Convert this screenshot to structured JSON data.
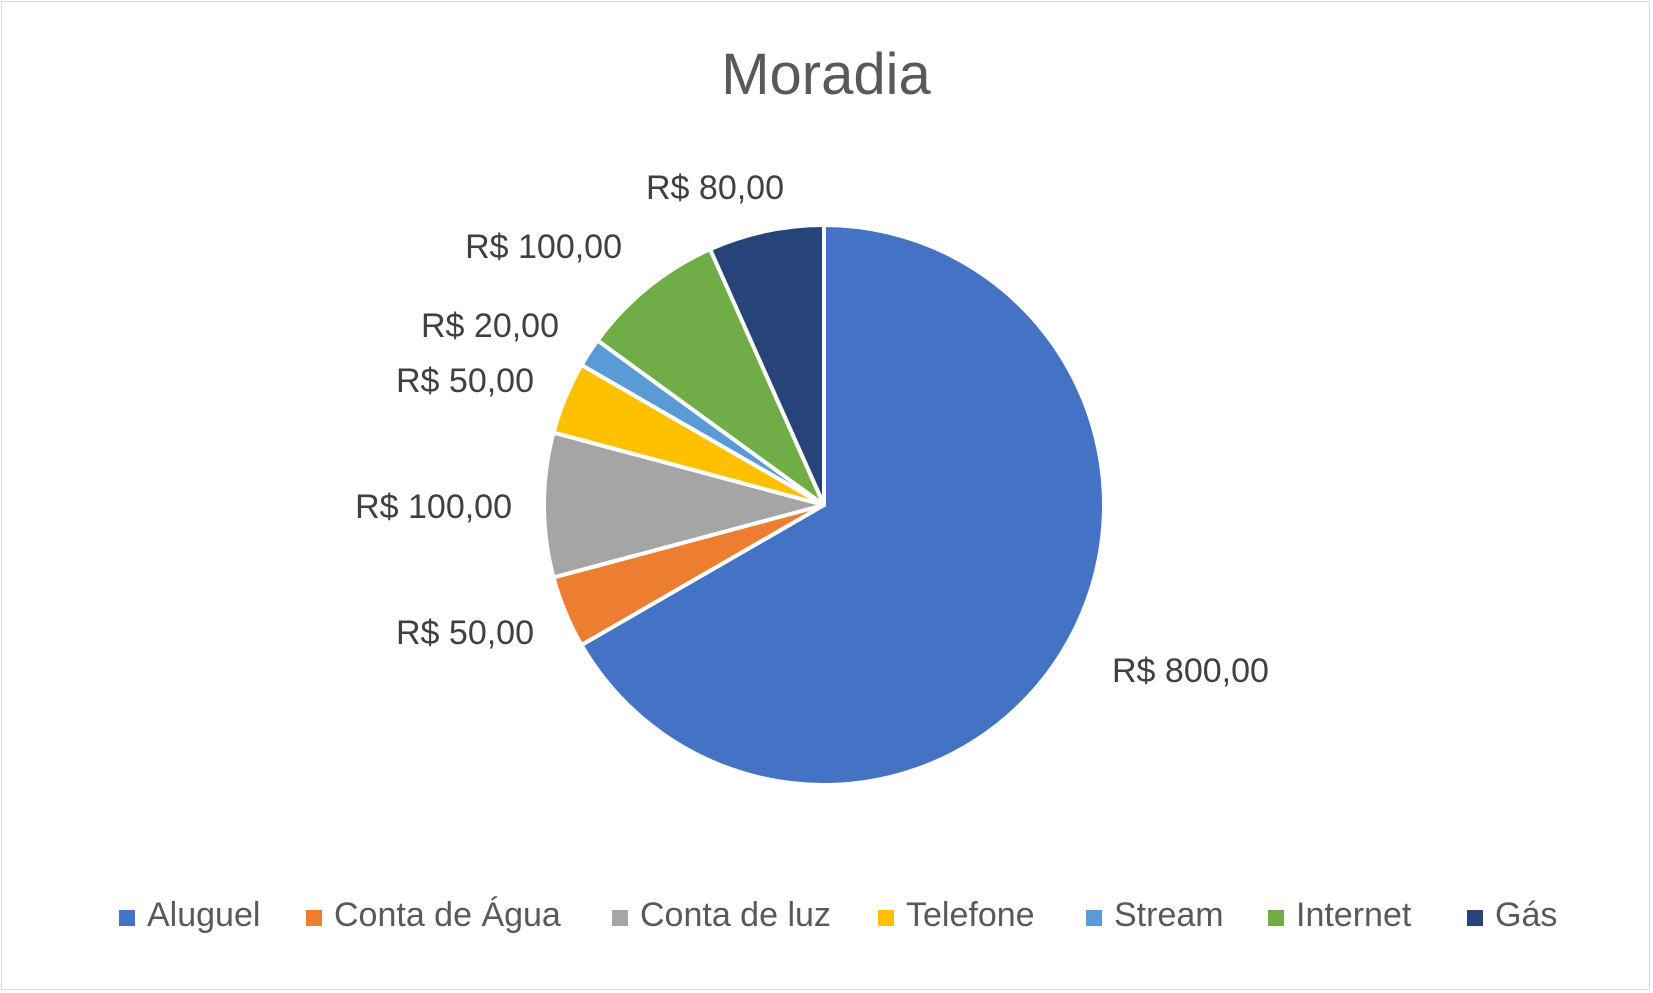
{
  "chart_data": {
    "type": "pie",
    "title": "Moradia",
    "categories": [
      "Aluguel",
      "Conta de Água",
      "Conta de luz",
      "Telefone",
      "Stream",
      "Internet",
      "Gás"
    ],
    "values": [
      800,
      50,
      100,
      50,
      20,
      100,
      80
    ],
    "data_labels": [
      "R$ 800,00",
      "R$ 50,00",
      "R$ 100,00",
      "R$ 50,00",
      "R$ 20,00",
      "R$ 100,00",
      "R$ 80,00"
    ],
    "colors": [
      "#4472C4",
      "#ED7D31",
      "#A5A5A5",
      "#FFC000",
      "#5B9BD5",
      "#70AD47",
      "#264478"
    ],
    "legend_position": "bottom",
    "start_angle": "12 o'clock",
    "direction": "clockwise"
  }
}
